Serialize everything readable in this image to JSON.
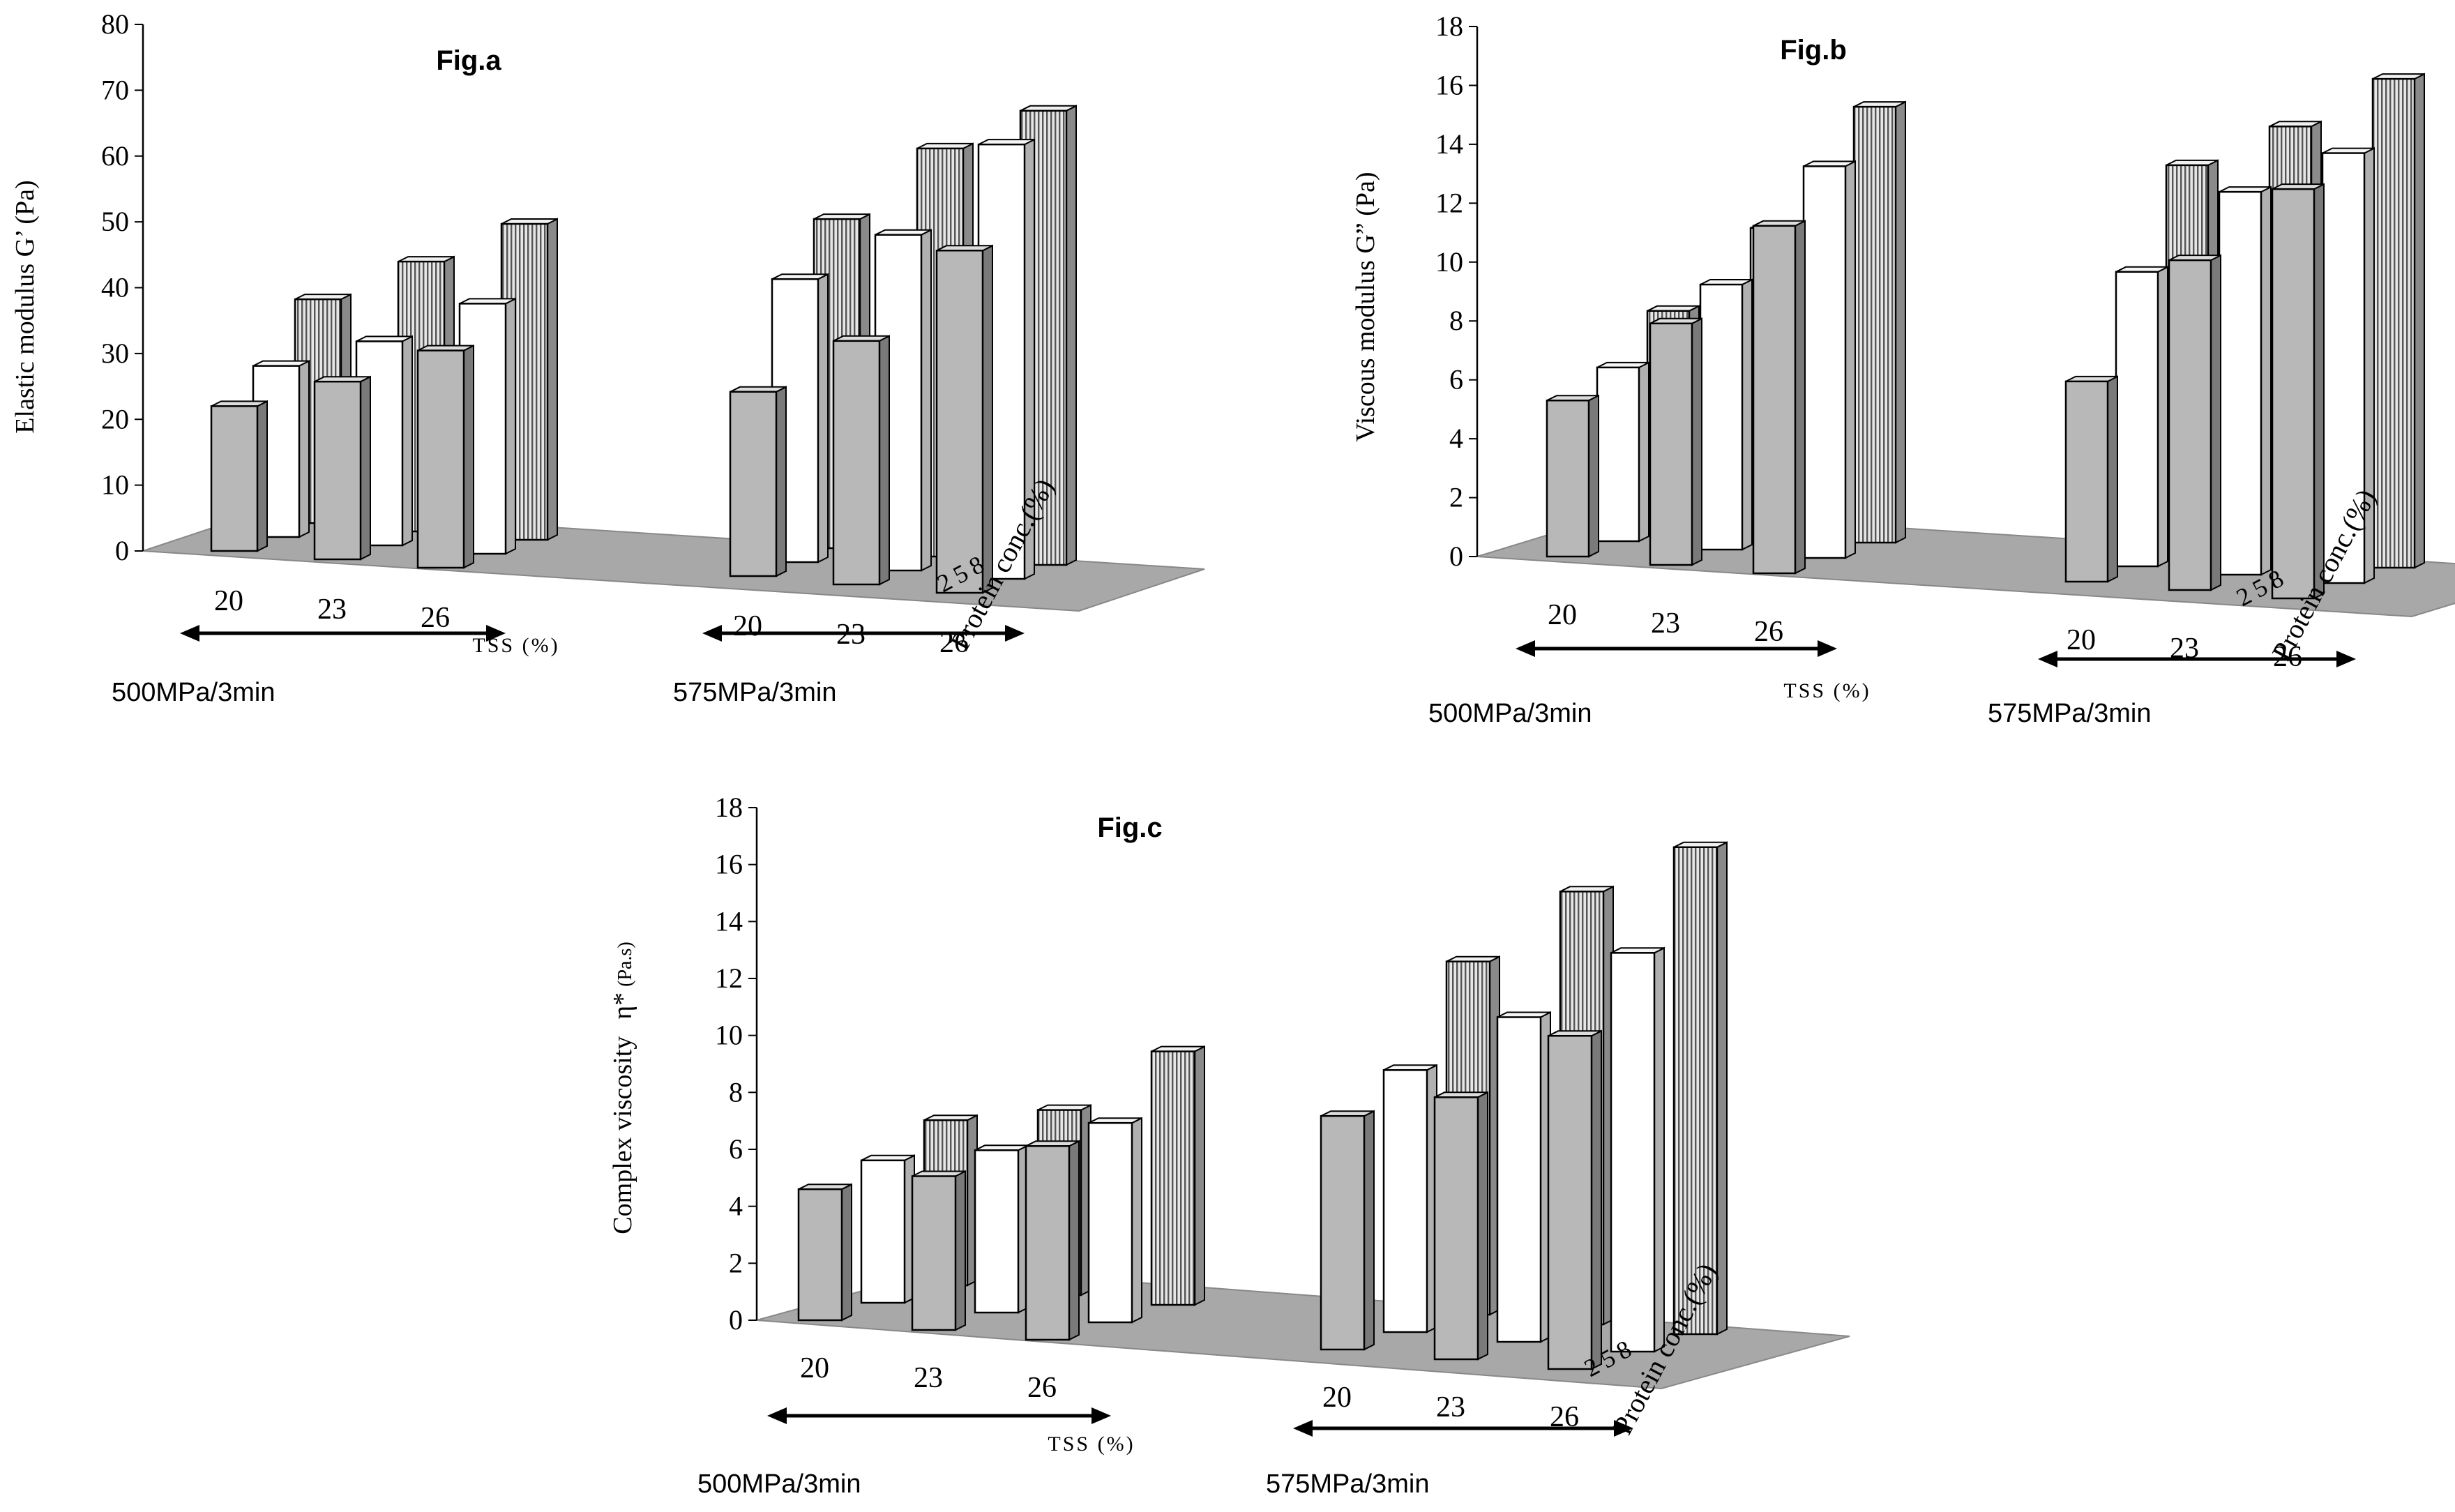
{
  "colors": {
    "back_row": "#b8b8b8",
    "middle_row": "#ffffff",
    "front_row": "#e6e6e6",
    "floor": "#a8a8a8",
    "axis": "#000000"
  },
  "chart_data": [
    {
      "id": "fig-a",
      "type": "bar",
      "title": "Fig.a",
      "ylabel": "Elastic modulus G’ (Pa)",
      "xlabel": "TSS (%)",
      "zlabel": "Protein conc.(%)",
      "ylim": [
        0,
        80
      ],
      "ytick_labels": [
        "0",
        "10",
        "20",
        "30",
        "40",
        "50",
        "60",
        "70",
        "80"
      ],
      "categories": [
        "20",
        "23",
        "26",
        "20",
        "23",
        "26"
      ],
      "z_categories": [
        "2",
        "5",
        "8"
      ],
      "groups": [
        {
          "label": "500MPa/3min",
          "categories": [
            "20",
            "23",
            "26"
          ]
        },
        {
          "label": "575MPa/3min",
          "categories": [
            "20",
            "23",
            "26"
          ]
        }
      ],
      "series": [
        {
          "name": "2",
          "values": [
            22,
            27,
            33,
            28,
            37,
            52
          ]
        },
        {
          "name": "5",
          "values": [
            26,
            31,
            38,
            43,
            51,
            66
          ]
        },
        {
          "name": "8",
          "values": [
            34,
            41,
            48,
            50,
            62,
            69
          ]
        }
      ]
    },
    {
      "id": "fig-b",
      "type": "bar",
      "title": "Fig.b",
      "ylabel": "Viscous modulus G” (Pa)",
      "xlabel": "TSS (%)",
      "zlabel": "Protein conc.(%)",
      "ylim": [
        0,
        18
      ],
      "ytick_labels": [
        "0",
        "2",
        "4",
        "6",
        "8",
        "10",
        "12",
        "14",
        "16",
        "18"
      ],
      "categories": [
        "20",
        "23",
        "26",
        "20",
        "23",
        "26"
      ],
      "z_categories": [
        "2",
        "5",
        "8"
      ],
      "groups": [
        {
          "label": "500MPa/3min",
          "categories": [
            "20",
            "23",
            "26"
          ]
        },
        {
          "label": "575MPa/3min",
          "categories": [
            "20",
            "23",
            "26"
          ]
        }
      ],
      "series": [
        {
          "name": "2",
          "values": [
            5.3,
            8.2,
            11.8,
            6.8,
            11.2,
            13.9
          ]
        },
        {
          "name": "5",
          "values": [
            5.9,
            9.0,
            13.3,
            10.0,
            13.0,
            14.6
          ]
        },
        {
          "name": "8",
          "values": [
            7.3,
            10.4,
            14.8,
            13.1,
            14.7,
            16.6
          ]
        }
      ]
    },
    {
      "id": "fig-c",
      "type": "bar",
      "title": "Fig.c",
      "ylabel": "Complex viscosity",
      "ylabel_symbol": "η*",
      "ylabel_unit": "(Pa.s)",
      "xlabel": "TSS (%)",
      "zlabel": "Protein conc.(%)",
      "ylim": [
        0,
        18
      ],
      "ytick_labels": [
        "0",
        "2",
        "4",
        "6",
        "8",
        "10",
        "12",
        "14",
        "16",
        "18"
      ],
      "categories": [
        "20",
        "23",
        "26",
        "20",
        "23",
        "26"
      ],
      "z_categories": [
        "2",
        "5",
        "8"
      ],
      "groups": [
        {
          "label": "500MPa/3min",
          "categories": [
            "20",
            "23",
            "26"
          ]
        },
        {
          "label": "575MPa/3min",
          "categories": [
            "20",
            "23",
            "26"
          ]
        }
      ],
      "series": [
        {
          "name": "2",
          "values": [
            4.6,
            5.4,
            6.8,
            8.2,
            9.2,
            11.7
          ]
        },
        {
          "name": "5",
          "values": [
            5.0,
            5.7,
            7.0,
            9.2,
            11.4,
            14.0
          ]
        },
        {
          "name": "8",
          "values": [
            5.8,
            6.5,
            8.9,
            12.4,
            15.2,
            17.1
          ]
        }
      ]
    }
  ]
}
